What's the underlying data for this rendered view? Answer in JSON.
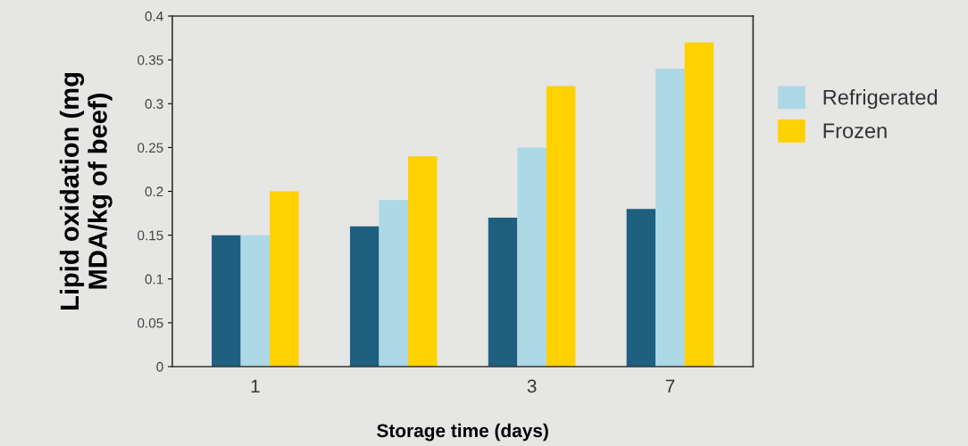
{
  "chart_data": {
    "type": "bar",
    "categories": [
      "1",
      null,
      "3",
      "7"
    ],
    "series": [
      {
        "color": "#1f5f80",
        "values": [
          0.15,
          0.16,
          0.17,
          0.18
        ]
      },
      {
        "name": "Refrigerated",
        "color": "#add8e6",
        "values": [
          0.15,
          0.19,
          0.25,
          0.34
        ]
      },
      {
        "name": "Frozen",
        "color": "#ffd100",
        "values": [
          0.2,
          0.24,
          0.32,
          0.37
        ]
      }
    ],
    "xlabel": "Storage time (days)",
    "ylabel": "Lipid oxidation (mg\nMDA/kg of beef)",
    "ylim": [
      0,
      0.4
    ],
    "yticks": [
      0,
      0.05,
      0.1,
      0.15,
      0.2,
      0.25,
      0.3,
      0.35,
      0.4
    ],
    "grid": false,
    "legend": "right"
  }
}
